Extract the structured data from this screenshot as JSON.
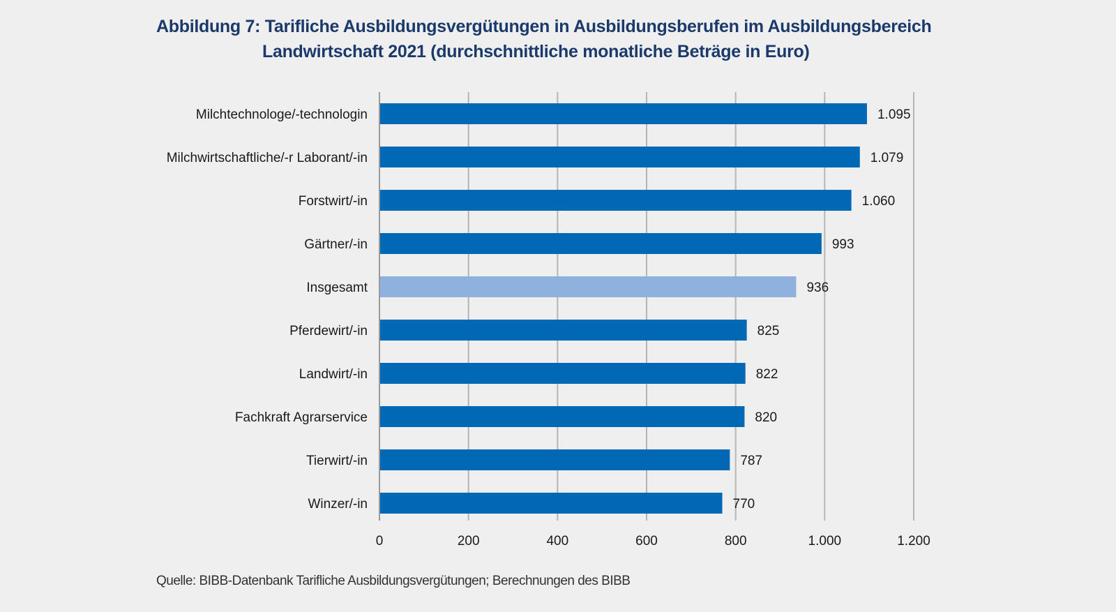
{
  "chart_data": {
    "type": "bar",
    "orientation": "horizontal",
    "title": "Abbildung 7: Tarifliche Ausbildungsvergütungen in Ausbildungsberufen im Ausbildungsbereich",
    "title_line2": "Landwirtschaft 2021 (durchschnittliche monatliche Beträge in Euro)",
    "source": "Quelle: BIBB-Datenbank Tarifliche Ausbildungsvergütungen; Berechnungen des BIBB",
    "categories": [
      "Milchtechnologe/-technologin",
      "Milchwirtschaftliche/-r Laborant/-in",
      "Forstwirt/-in",
      "Gärtner/-in",
      "Insgesamt",
      "Pferdewirt/-in",
      "Landwirt/-in",
      "Fachkraft Agrarservice",
      "Tierwirt/-in",
      "Winzer/-in"
    ],
    "values": [
      1095,
      1079,
      1060,
      993,
      936,
      825,
      822,
      820,
      787,
      770
    ],
    "value_labels": [
      "1.095",
      "1.079",
      "1.060",
      "993",
      "936",
      "825",
      "822",
      "820",
      "787",
      "770"
    ],
    "highlight_index": 4,
    "xlim": [
      0,
      1200
    ],
    "xticks": [
      0,
      200,
      400,
      600,
      800,
      1000,
      1200
    ],
    "xtick_labels": [
      "0",
      "200",
      "400",
      "600",
      "800",
      "1.000",
      "1.200"
    ],
    "xlabel": "",
    "ylabel": "",
    "grid": true,
    "colors": {
      "bar": "#0068b4",
      "highlight": "#8eb1dd",
      "grid": "#b5b5b5",
      "title": "#1b3a6b"
    }
  }
}
